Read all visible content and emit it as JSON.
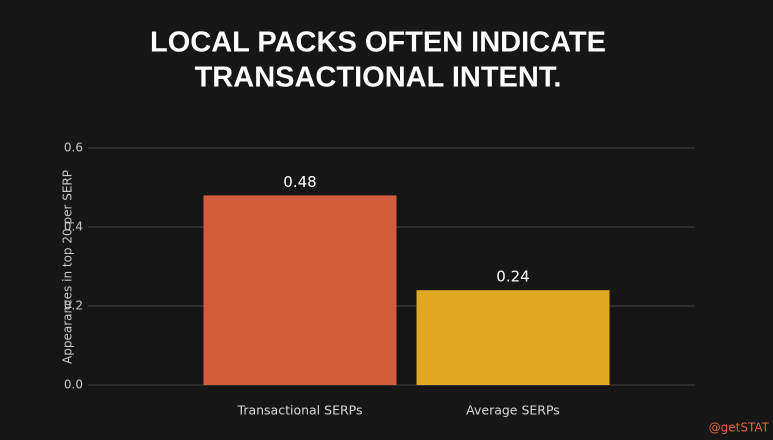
{
  "chart_data": {
    "type": "bar",
    "title": [
      "LOCAL PACKS OFTEN INDICATE",
      "TRANSACTIONAL INTENT."
    ],
    "y_label": "Appearances in top 20 per SERP",
    "categories": [
      "Transactional SERPs",
      "Average SERPs"
    ],
    "values": [
      0.48,
      0.24
    ],
    "colors": [
      "#d35c3c",
      "#e3a823"
    ],
    "ylim": [
      0,
      0.6
    ],
    "yticks": [
      {
        "value": 0,
        "label": "0.0"
      },
      0.2,
      0.4,
      0.6
    ],
    "grid": true,
    "credit": "@getSTAT"
  }
}
